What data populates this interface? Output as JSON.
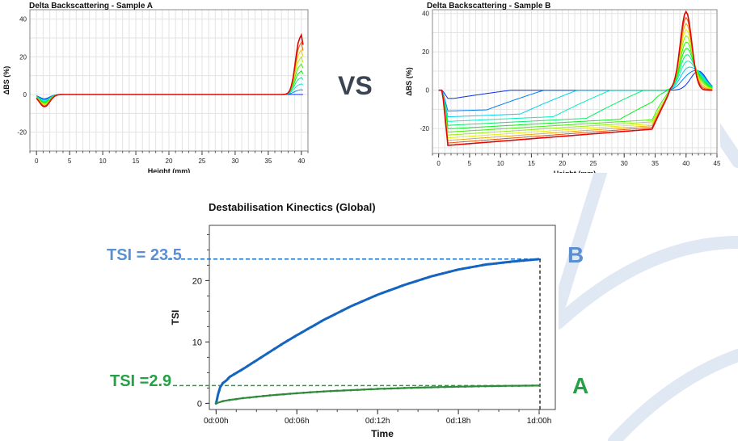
{
  "vs_label": "VS",
  "colors": {
    "sample_b": "#1565c0",
    "sample_a": "#2e8b3a",
    "callout_b": "#5b8fd2",
    "callout_a": "#25a046",
    "deco": "#dfe8f3"
  },
  "chart_data": [
    {
      "id": "chart-a",
      "type": "line",
      "title": "Delta Backscattering - Sample A",
      "xlabel": "Height (mm)",
      "ylabel": "ΔBS (%)",
      "xlim": [
        -1,
        41
      ],
      "ylim": [
        -30,
        45
      ],
      "xticks": [
        0,
        5,
        10,
        15,
        20,
        25,
        30,
        35,
        40
      ],
      "yticks": [
        -20,
        0,
        20,
        40
      ],
      "grid": true,
      "legend": "none",
      "series_description": "family of profiles, blue (early) to red (late)",
      "dip": {
        "x": 1.2,
        "min": -6.5
      },
      "peak": {
        "x": 39.8,
        "max": 30
      },
      "profile_count": 10
    },
    {
      "id": "chart-b",
      "type": "line",
      "title": "Delta Backscattering - Sample B",
      "xlabel": "Height (mm)",
      "ylabel": "ΔBS (%)",
      "xlim": [
        -1,
        45
      ],
      "ylim": [
        -33,
        42
      ],
      "xticks": [
        0,
        5,
        10,
        15,
        20,
        25,
        30,
        35,
        40,
        45
      ],
      "yticks": [
        -20,
        0,
        20,
        40
      ],
      "grid": true,
      "legend": "none",
      "series_description": "family of profiles, blue (early) to red (late)",
      "trough": {
        "start": 0.6,
        "min": -29,
        "at_x": 6,
        "at_35": -20,
        "cross_x": 37.5
      },
      "peak": {
        "x": 40,
        "max": 41
      },
      "profile_count": 12
    },
    {
      "id": "chart-kinetics",
      "type": "line",
      "title": "Destabilisation Kinectics (Global)",
      "xlabel": "Time",
      "ylabel": "TSI",
      "xlim_hours": [
        -0.5,
        25.2
      ],
      "ylim": [
        -1,
        29
      ],
      "xticks": [
        "0d:00h",
        "0d:06h",
        "0d:12h",
        "0d:18h",
        "1d:00h"
      ],
      "xtick_hours": [
        0,
        6,
        12,
        18,
        24
      ],
      "yticks": [
        0,
        10,
        20
      ],
      "grid": false,
      "series": [
        {
          "name": "B",
          "color": "#1565c0",
          "hours": [
            0,
            0.15,
            0.3,
            0.5,
            0.8,
            1,
            2,
            3,
            4,
            5,
            6,
            8,
            10,
            12,
            14,
            16,
            18,
            20,
            22,
            24
          ],
          "values": [
            0,
            1.5,
            2.6,
            3.3,
            3.8,
            4.3,
            5.6,
            7.0,
            8.4,
            9.8,
            11.1,
            13.6,
            15.8,
            17.7,
            19.3,
            20.7,
            21.8,
            22.6,
            23.1,
            23.5
          ]
        },
        {
          "name": "A",
          "color": "#2e8b3a",
          "hours": [
            0,
            0.5,
            1,
            2,
            4,
            6,
            8,
            10,
            12,
            14,
            16,
            18,
            20,
            22,
            24
          ],
          "values": [
            0,
            0.35,
            0.55,
            0.85,
            1.3,
            1.65,
            1.95,
            2.15,
            2.35,
            2.5,
            2.62,
            2.72,
            2.8,
            2.86,
            2.9
          ]
        }
      ],
      "reference_lines": [
        {
          "series": "B",
          "value": 23.5,
          "label": "TSI = 23.5",
          "tag": "B"
        },
        {
          "series": "A",
          "value": 2.9,
          "label": "TSI =2.9",
          "tag": "A"
        }
      ]
    }
  ]
}
